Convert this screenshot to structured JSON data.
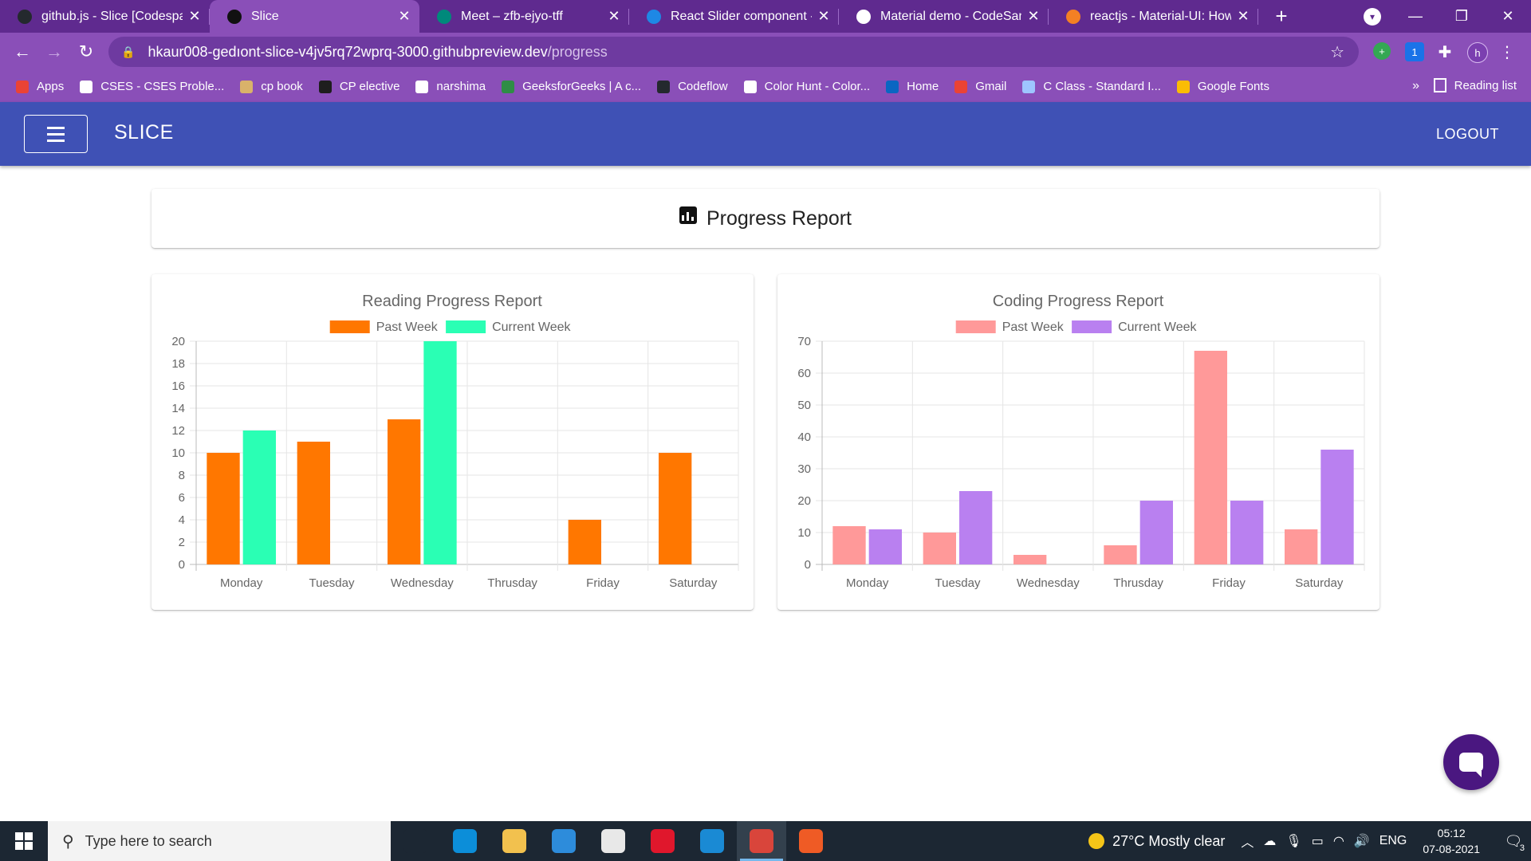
{
  "browser": {
    "tabs": [
      {
        "title": "github.js - Slice [Codespaces]",
        "icon": "github-icon",
        "color": "#24292e"
      },
      {
        "title": "Slice",
        "icon": "slice-favicon",
        "color": "#111111",
        "active": true
      },
      {
        "title": "Meet – zfb-ejyo-tff",
        "icon": "google-meet-icon",
        "color": "#00897b"
      },
      {
        "title": "React Slider component - M",
        "icon": "mui-icon",
        "color": "#1e88e5"
      },
      {
        "title": "Material demo - CodeSandb",
        "icon": "codesandbox-icon",
        "color": "#ffffff"
      },
      {
        "title": "reactjs - Material-UI: How to",
        "icon": "stackoverflow-icon",
        "color": "#f48024"
      }
    ],
    "url_host": "hkaur008-gedıont-slice-v4jv5rq72wprq-3000.githubpreview.dev",
    "url_path": "/progress",
    "profile_initial": "h",
    "extension_badge": "1",
    "bookmarks": [
      {
        "label": "Apps",
        "icon": "apps-grid-icon",
        "color": "#ea4335"
      },
      {
        "label": "CSES - CSES Proble...",
        "icon": "globe-icon",
        "color": "#ffffff"
      },
      {
        "label": "cp book",
        "icon": "book-icon",
        "color": "#d9b26a"
      },
      {
        "label": "CP elective",
        "icon": "classroom-icon",
        "color": "#1e1e1e"
      },
      {
        "label": "narshima",
        "icon": "globe-icon",
        "color": "#ffffff"
      },
      {
        "label": "GeeksforGeeks | A c...",
        "icon": "gfg-icon",
        "color": "#2f8d46"
      },
      {
        "label": "Codeflow",
        "icon": "github-icon",
        "color": "#24292e"
      },
      {
        "label": "Color Hunt - Color...",
        "icon": "globe-icon",
        "color": "#ffffff"
      },
      {
        "label": "Home",
        "icon": "linkedin-icon",
        "color": "#0a66c2"
      },
      {
        "label": "Gmail",
        "icon": "gmail-icon",
        "color": "#ea4335"
      },
      {
        "label": "C Class - Standard I...",
        "icon": "grid-icon",
        "color": "#9ec5ff"
      },
      {
        "label": "Google Fonts",
        "icon": "google-fonts-icon",
        "color": "#fbbc04"
      }
    ],
    "bookmarks_more": "»",
    "reading_list": "Reading list"
  },
  "app": {
    "brand": "SLICE",
    "logout_label": "LOGOUT",
    "page_title": "Progress Report",
    "accent": "#3f51b5"
  },
  "chart_data": [
    {
      "type": "bar",
      "title": "Reading Progress Report",
      "categories": [
        "Monday",
        "Tuesday",
        "Wednesday",
        "Thrusday",
        "Friday",
        "Saturday"
      ],
      "series": [
        {
          "name": "Past Week",
          "color": "#ff7700",
          "values": [
            10,
            11,
            13,
            0,
            4,
            10
          ]
        },
        {
          "name": "Current Week",
          "color": "#2affb4",
          "values": [
            12,
            0,
            20,
            0,
            0,
            0
          ]
        }
      ],
      "ylim": [
        0,
        20
      ],
      "yticks": [
        0,
        2,
        4,
        6,
        8,
        10,
        12,
        14,
        16,
        18,
        20
      ],
      "legend": "top",
      "grid": true
    },
    {
      "type": "bar",
      "title": "Coding Progress Report",
      "categories": [
        "Monday",
        "Tuesday",
        "Wednesday",
        "Thrusday",
        "Friday",
        "Saturday"
      ],
      "series": [
        {
          "name": "Past Week",
          "color": "#ff9999",
          "values": [
            12,
            10,
            3,
            6,
            67,
            11
          ]
        },
        {
          "name": "Current Week",
          "color": "#b980f0",
          "values": [
            11,
            23,
            0,
            20,
            20,
            36
          ]
        }
      ],
      "ylim": [
        0,
        70
      ],
      "yticks": [
        0,
        10,
        20,
        30,
        40,
        50,
        60,
        70
      ],
      "legend": "top",
      "grid": true
    }
  ],
  "taskbar": {
    "search_placeholder": "Type here to search",
    "apps": [
      {
        "name": "task-view-icon",
        "color": "#1c2733"
      },
      {
        "name": "edge-icon",
        "color": "#0c8ed9"
      },
      {
        "name": "file-explorer-icon",
        "color": "#f2c14e"
      },
      {
        "name": "mail-icon",
        "color": "#2d8cdb"
      },
      {
        "name": "store-icon",
        "color": "#e8e8e8"
      },
      {
        "name": "opera-icon",
        "color": "#e0172c"
      },
      {
        "name": "vscode-icon",
        "color": "#1a8ad4"
      },
      {
        "name": "chrome-icon",
        "color": "#d9453b",
        "active": true
      },
      {
        "name": "postman-icon",
        "color": "#ef5b25"
      }
    ],
    "weather": "27°C  Mostly clear",
    "language": "ENG",
    "time": "05:12",
    "date": "07-08-2021",
    "notification_count": "3"
  }
}
